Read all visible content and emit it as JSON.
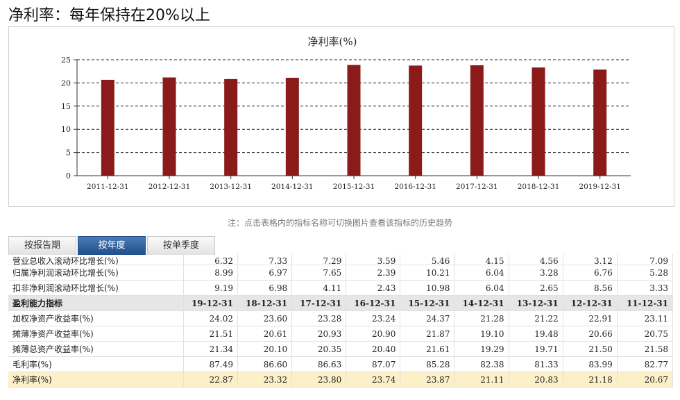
{
  "page_title": "净利率：每年保持在20%以上",
  "note": "注：点击表格内的指标名称可切换图片查看该指标的历史趋势",
  "tabs": [
    {
      "label": "按报告期",
      "active": false
    },
    {
      "label": "按年度",
      "active": true
    },
    {
      "label": "按单季度",
      "active": false
    }
  ],
  "colors": {
    "bar": "#8b1a1a",
    "active_tab": "#2a5b9a",
    "highlight_row": "#fbf0c8"
  },
  "chart_data": {
    "type": "bar",
    "title": "净利率(%)",
    "categories": [
      "2011-12-31",
      "2012-12-31",
      "2013-12-31",
      "2014-12-31",
      "2015-12-31",
      "2016-12-31",
      "2017-12-31",
      "2018-12-31",
      "2019-12-31"
    ],
    "values": [
      20.67,
      21.18,
      20.83,
      21.11,
      23.87,
      23.74,
      23.8,
      23.32,
      22.87
    ],
    "ylim": [
      0,
      25
    ],
    "yticks": [
      0,
      5,
      10,
      15,
      20,
      25
    ],
    "grid": "dashed-horizontal",
    "xlabel": "",
    "ylabel": ""
  },
  "table": {
    "rows": [
      {
        "type": "partial",
        "name": "营业总收入滚动环比增长(%)",
        "values": [
          "6.32",
          "7.33",
          "7.29",
          "3.59",
          "5.46",
          "4.15",
          "4.56",
          "3.12",
          "7.09"
        ]
      },
      {
        "type": "data",
        "name": "归属净利润滚动环比增长(%)",
        "values": [
          "8.99",
          "6.97",
          "7.65",
          "2.39",
          "10.21",
          "6.04",
          "3.28",
          "6.76",
          "5.28"
        ]
      },
      {
        "type": "data",
        "name": "扣非净利润滚动环比增长(%)",
        "values": [
          "9.19",
          "6.98",
          "4.11",
          "2.43",
          "10.98",
          "6.04",
          "2.65",
          "8.56",
          "3.33"
        ]
      },
      {
        "type": "section",
        "name": "盈利能力指标",
        "values": [
          "19-12-31",
          "18-12-31",
          "17-12-31",
          "16-12-31",
          "15-12-31",
          "14-12-31",
          "13-12-31",
          "12-12-31",
          "11-12-31"
        ]
      },
      {
        "type": "data",
        "name": "加权净资产收益率(%)",
        "values": [
          "24.02",
          "23.60",
          "23.28",
          "23.24",
          "24.37",
          "21.28",
          "21.22",
          "22.91",
          "23.11"
        ]
      },
      {
        "type": "data",
        "name": "摊薄净资产收益率(%)",
        "values": [
          "21.51",
          "20.61",
          "20.93",
          "20.90",
          "21.87",
          "19.10",
          "19.48",
          "20.66",
          "20.75"
        ]
      },
      {
        "type": "data",
        "name": "摊薄总资产收益率(%)",
        "values": [
          "21.34",
          "20.10",
          "20.35",
          "20.40",
          "21.61",
          "19.29",
          "19.71",
          "21.50",
          "21.58"
        ]
      },
      {
        "type": "data",
        "name": "毛利率(%)",
        "values": [
          "87.49",
          "86.60",
          "86.63",
          "87.07",
          "85.28",
          "82.38",
          "81.33",
          "83.99",
          "82.77"
        ]
      },
      {
        "type": "highlight",
        "name": "净利率(%)",
        "values": [
          "22.87",
          "23.32",
          "23.80",
          "23.74",
          "23.87",
          "21.11",
          "20.83",
          "21.18",
          "20.67"
        ]
      }
    ]
  }
}
